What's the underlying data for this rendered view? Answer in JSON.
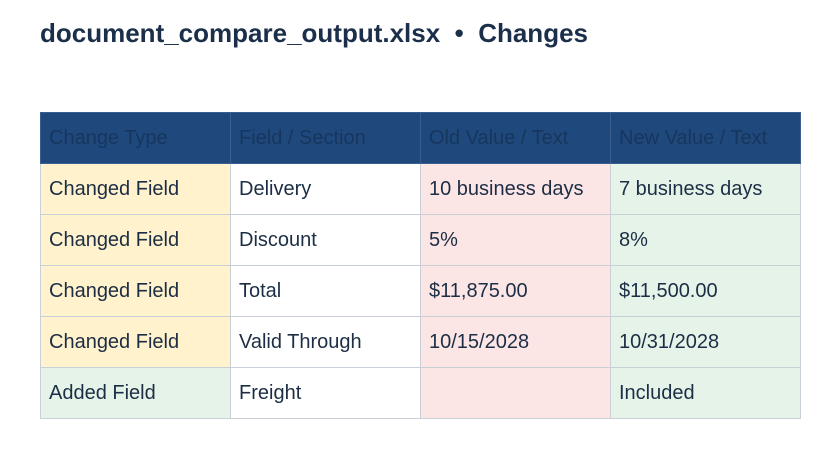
{
  "header": {
    "title": "document_compare_output.xlsx  •  Changes"
  },
  "table": {
    "columns": [
      "Change Type",
      "Field / Section",
      "Old Value / Text",
      "New Value / Text"
    ],
    "rows": [
      [
        "Changed Field",
        "Delivery",
        "10 business days",
        "7 business days"
      ],
      [
        "Changed Field",
        "Discount",
        "5%",
        "8%"
      ],
      [
        "Changed Field",
        "Total",
        "$11,875.00",
        "$11,500.00"
      ],
      [
        "Changed Field",
        "Valid Through",
        "10/15/2028",
        "10/31/2028"
      ],
      [
        "Added Field",
        "Freight",
        null,
        "Included"
      ]
    ]
  }
}
